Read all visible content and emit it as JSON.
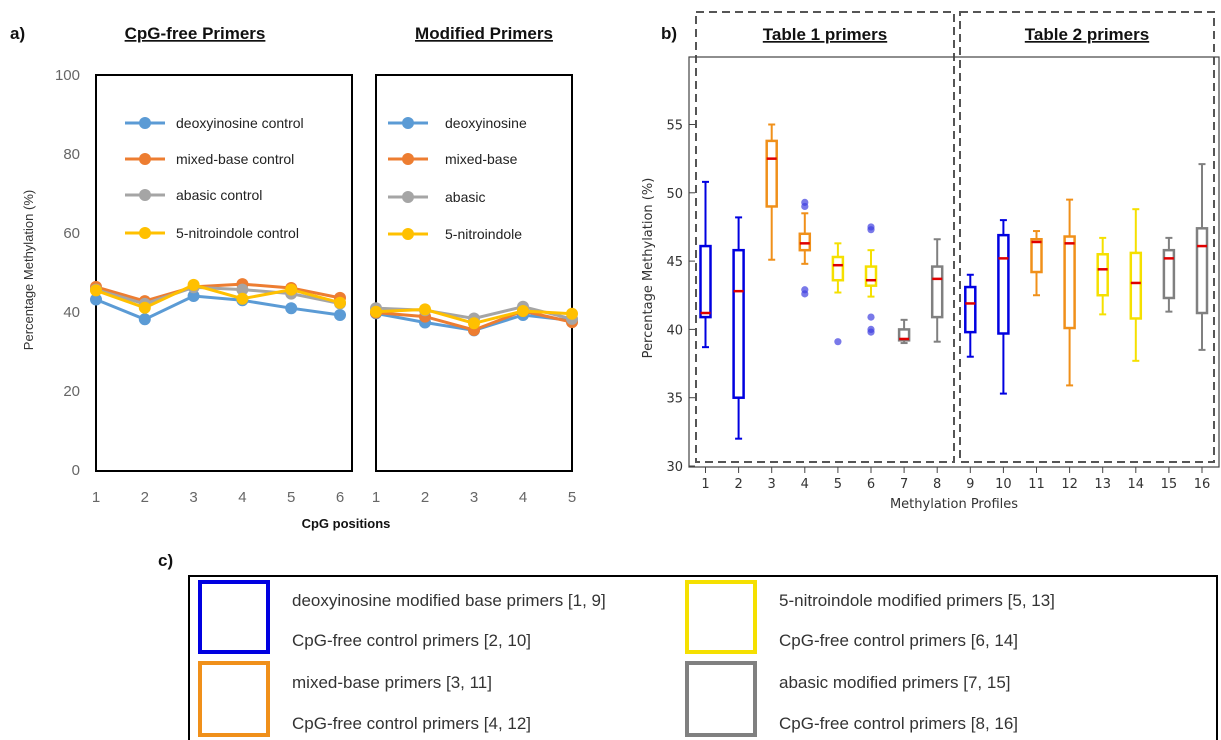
{
  "labels": {
    "a": "a)",
    "b": "b)",
    "c": "c)"
  },
  "colors": {
    "deoxyinosine": "#5b9bd5",
    "mixed": "#ed7d31",
    "abasic": "#a5a5a5",
    "nitro": "#ffc000",
    "box_blue": "#0000e0",
    "box_orange": "#f0901a",
    "box_yellow": "#f5e000",
    "box_gray": "#808080",
    "median": "#e00000",
    "outlier": "#4040e0"
  },
  "panel_a": {
    "xlabel": "CpG positions",
    "ylabel": "Percentage Methylation (%)",
    "ylim": [
      0,
      100
    ],
    "yticks": [
      "0",
      "20",
      "40",
      "60",
      "80",
      "100"
    ],
    "left": {
      "title": "CpG-free Primers",
      "x": [
        "1",
        "2",
        "3",
        "4",
        "5",
        "6"
      ],
      "series": [
        {
          "name": "deoxyinosine control",
          "color": "#5b9bd5",
          "values": [
            43.3,
            38.3,
            44.2,
            43.1,
            41.1,
            39.4
          ]
        },
        {
          "name": "mixed-base control",
          "color": "#ed7d31",
          "values": [
            46.5,
            42.9,
            46.5,
            47.2,
            46.2,
            43.7
          ]
        },
        {
          "name": "abasic control",
          "color": "#a5a5a5",
          "values": [
            45.8,
            42.2,
            46.4,
            45.8,
            44.8,
            42.3
          ]
        },
        {
          "name": "5-nitroindole control",
          "color": "#ffc000",
          "values": [
            45.6,
            41.2,
            47.0,
            43.5,
            45.8,
            42.5
          ]
        }
      ]
    },
    "right": {
      "title": "Modified Primers",
      "x": [
        "1",
        "2",
        "3",
        "4",
        "5"
      ],
      "series": [
        {
          "name": "deoxyinosine",
          "color": "#5b9bd5",
          "values": [
            39.8,
            37.5,
            35.5,
            39.4,
            38.0
          ]
        },
        {
          "name": "mixed-base",
          "color": "#ed7d31",
          "values": [
            40.0,
            39.0,
            35.6,
            40.4,
            37.6
          ]
        },
        {
          "name": "abasic",
          "color": "#a5a5a5",
          "values": [
            41.1,
            40.6,
            38.5,
            41.5,
            38.4
          ]
        },
        {
          "name": "5-nitroindole",
          "color": "#ffc000",
          "values": [
            40.2,
            40.8,
            37.3,
            40.4,
            39.7
          ]
        }
      ]
    }
  },
  "chart_data": [
    {
      "type": "line",
      "title": "CpG-free Primers",
      "xlabel": "CpG positions",
      "ylabel": "Percentage Methylation (%)",
      "ylim": [
        0,
        100
      ],
      "x": [
        1,
        2,
        3,
        4,
        5,
        6
      ],
      "series": [
        {
          "name": "deoxyinosine control",
          "values": [
            43.3,
            38.3,
            44.2,
            43.1,
            41.1,
            39.4
          ]
        },
        {
          "name": "mixed-base control",
          "values": [
            46.5,
            42.9,
            46.5,
            47.2,
            46.2,
            43.7
          ]
        },
        {
          "name": "abasic control",
          "values": [
            45.8,
            42.2,
            46.4,
            45.8,
            44.8,
            42.3
          ]
        },
        {
          "name": "5-nitroindole control",
          "values": [
            45.6,
            41.2,
            47.0,
            43.5,
            45.8,
            42.5
          ]
        }
      ]
    },
    {
      "type": "line",
      "title": "Modified Primers",
      "xlabel": "CpG positions",
      "ylim": [
        0,
        100
      ],
      "x": [
        1,
        2,
        3,
        4,
        5
      ],
      "series": [
        {
          "name": "deoxyinosine",
          "values": [
            39.8,
            37.5,
            35.5,
            39.4,
            38.0
          ]
        },
        {
          "name": "mixed-base",
          "values": [
            40.0,
            39.0,
            35.6,
            40.4,
            37.6
          ]
        },
        {
          "name": "abasic",
          "values": [
            41.1,
            40.6,
            38.5,
            41.5,
            38.4
          ]
        },
        {
          "name": "5-nitroindole",
          "values": [
            40.2,
            40.8,
            37.3,
            40.4,
            39.7
          ]
        }
      ]
    },
    {
      "type": "box",
      "groups": [
        "Table 1 primers",
        "Table 2 primers"
      ],
      "xlabel": "Methylation Profiles",
      "ylabel": "Percentage Methylation (%)",
      "ylim": [
        30,
        58
      ],
      "yticks": [
        30,
        35,
        40,
        45,
        50,
        55
      ],
      "boxes": [
        {
          "profile": 1,
          "color": "#0000e0",
          "min": 38.7,
          "q1": 40.9,
          "median": 41.2,
          "q3": 46.1,
          "max": 50.8,
          "outliers": []
        },
        {
          "profile": 2,
          "color": "#0000e0",
          "min": 32.0,
          "q1": 35.0,
          "median": 42.8,
          "q3": 45.8,
          "max": 48.2,
          "outliers": []
        },
        {
          "profile": 3,
          "color": "#f0901a",
          "min": 45.1,
          "q1": 49.0,
          "median": 52.5,
          "q3": 53.8,
          "max": 55.0,
          "outliers": []
        },
        {
          "profile": 4,
          "color": "#f0901a",
          "min": 44.8,
          "q1": 45.8,
          "median": 46.3,
          "q3": 47.0,
          "max": 48.5,
          "outliers": [
            42.6,
            42.9,
            49.0,
            49.3
          ]
        },
        {
          "profile": 5,
          "color": "#f5e000",
          "min": 42.7,
          "q1": 43.6,
          "median": 44.7,
          "q3": 45.3,
          "max": 46.3,
          "outliers": [
            39.1
          ]
        },
        {
          "profile": 6,
          "color": "#f5e000",
          "min": 42.4,
          "q1": 43.2,
          "median": 43.6,
          "q3": 44.6,
          "max": 45.8,
          "outliers": [
            39.8,
            40.0,
            40.9,
            47.3,
            47.5
          ]
        },
        {
          "profile": 7,
          "color": "#808080",
          "min": 39.0,
          "q1": 39.2,
          "median": 39.3,
          "q3": 40.0,
          "max": 40.7,
          "outliers": []
        },
        {
          "profile": 8,
          "color": "#808080",
          "min": 39.1,
          "q1": 40.9,
          "median": 43.7,
          "q3": 44.6,
          "max": 46.6,
          "outliers": []
        },
        {
          "profile": 9,
          "color": "#0000e0",
          "min": 38.0,
          "q1": 39.8,
          "median": 41.9,
          "q3": 43.1,
          "max": 44.0,
          "outliers": []
        },
        {
          "profile": 10,
          "color": "#0000e0",
          "min": 35.3,
          "q1": 39.7,
          "median": 45.2,
          "q3": 46.9,
          "max": 48.0,
          "outliers": []
        },
        {
          "profile": 11,
          "color": "#f0901a",
          "min": 42.5,
          "q1": 44.2,
          "median": 46.4,
          "q3": 46.6,
          "max": 47.2,
          "outliers": []
        },
        {
          "profile": 12,
          "color": "#f0901a",
          "min": 35.9,
          "q1": 40.1,
          "median": 46.3,
          "q3": 46.8,
          "max": 49.5,
          "outliers": []
        },
        {
          "profile": 13,
          "color": "#f5e000",
          "min": 41.1,
          "q1": 42.5,
          "median": 44.4,
          "q3": 45.5,
          "max": 46.7,
          "outliers": []
        },
        {
          "profile": 14,
          "color": "#f5e000",
          "min": 37.7,
          "q1": 40.8,
          "median": 43.4,
          "q3": 45.6,
          "max": 48.8,
          "outliers": []
        },
        {
          "profile": 15,
          "color": "#808080",
          "min": 41.3,
          "q1": 42.3,
          "median": 45.2,
          "q3": 45.8,
          "max": 46.7,
          "outliers": []
        },
        {
          "profile": 16,
          "color": "#808080",
          "min": 38.5,
          "q1": 41.2,
          "median": 46.1,
          "q3": 47.4,
          "max": 52.1,
          "outliers": []
        }
      ]
    }
  ],
  "panel_b": {
    "group1": "Table 1 primers",
    "group2": "Table 2 primers",
    "xlabel": "Methylation Profiles",
    "ylabel": "Percentage Methylation (%)",
    "yticks": [
      "30",
      "35",
      "40",
      "45",
      "50",
      "55"
    ],
    "xticks": [
      "1",
      "2",
      "3",
      "4",
      "5",
      "6",
      "7",
      "8",
      "9",
      "10",
      "11",
      "12",
      "13",
      "14",
      "15",
      "16"
    ]
  },
  "panel_c": {
    "items": [
      {
        "color": "#0000e0",
        "line1": "deoxyinosine modified base primers [1, 9]",
        "line2": "CpG-free control primers [2, 10]"
      },
      {
        "color": "#f0901a",
        "line1": "mixed-base primers [3, 11]",
        "line2": "CpG-free control primers [4, 12]"
      },
      {
        "color": "#f5e000",
        "line1": "5-nitroindole modified primers [5, 13]",
        "line2": "CpG-free control primers [6, 14]"
      },
      {
        "color": "#808080",
        "line1": "abasic modified primers [7, 15]",
        "line2": "CpG-free control primers [8, 16]"
      }
    ]
  }
}
